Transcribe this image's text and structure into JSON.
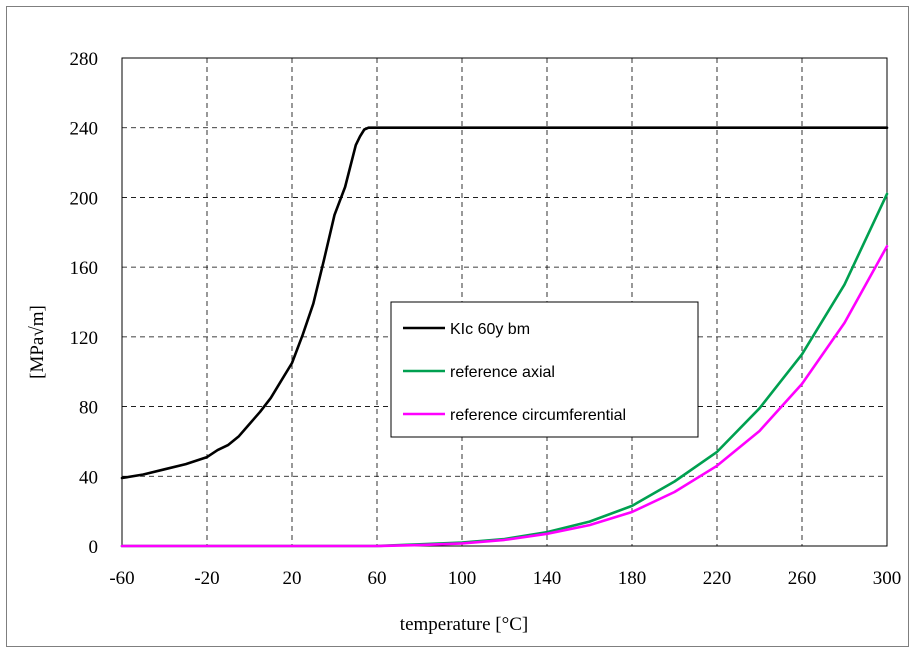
{
  "chart_data": {
    "type": "line",
    "title": "",
    "xlabel": "temperature [°C]",
    "ylabel": "[MPa√m]",
    "xlim": [
      -60,
      300
    ],
    "ylim": [
      0,
      280
    ],
    "x_ticks": [
      -60,
      -20,
      20,
      60,
      100,
      140,
      180,
      220,
      260,
      300
    ],
    "y_ticks": [
      0,
      40,
      80,
      120,
      160,
      200,
      240,
      280
    ],
    "x_tick_labels": [
      "-60",
      "-20",
      "20",
      "60",
      "100",
      "140",
      "180",
      "220",
      "260",
      "300"
    ],
    "y_tick_labels": [
      "0",
      "40",
      "80",
      "120",
      "160",
      "200",
      "240",
      "280"
    ],
    "grid": true,
    "grid_style": "dashed",
    "legend_position": "center",
    "series": [
      {
        "name": "KIc 60y bm",
        "color": "#000000",
        "x": [
          -60,
          -50,
          -40,
          -30,
          -20,
          -15,
          -10,
          -5,
          0,
          5,
          10,
          15,
          20,
          25,
          30,
          35,
          40,
          45,
          50,
          52,
          54,
          56,
          60,
          100,
          140,
          180,
          220,
          260,
          300
        ],
        "y": [
          39,
          41,
          44,
          47,
          51,
          55,
          58,
          63,
          70,
          77,
          85,
          95,
          105,
          121,
          139,
          164,
          190,
          206,
          230,
          235,
          239,
          240,
          240,
          240,
          240,
          240,
          240,
          240,
          240
        ]
      },
      {
        "name": "reference axial",
        "color": "#00a050",
        "x": [
          -60,
          0,
          60,
          80,
          100,
          120,
          140,
          160,
          180,
          200,
          220,
          240,
          260,
          280,
          300
        ],
        "y": [
          0,
          0,
          0,
          1,
          2,
          4,
          8,
          14,
          23,
          37,
          54,
          79,
          110,
          150,
          202
        ]
      },
      {
        "name": "reference circumferential",
        "color": "#ff00ff",
        "x": [
          -60,
          0,
          60,
          80,
          100,
          120,
          140,
          160,
          180,
          200,
          220,
          240,
          260,
          280,
          300
        ],
        "y": [
          0,
          0,
          0,
          0.5,
          1.5,
          3.5,
          7,
          12,
          19.5,
          31,
          46,
          66,
          93,
          128,
          172
        ]
      }
    ]
  }
}
